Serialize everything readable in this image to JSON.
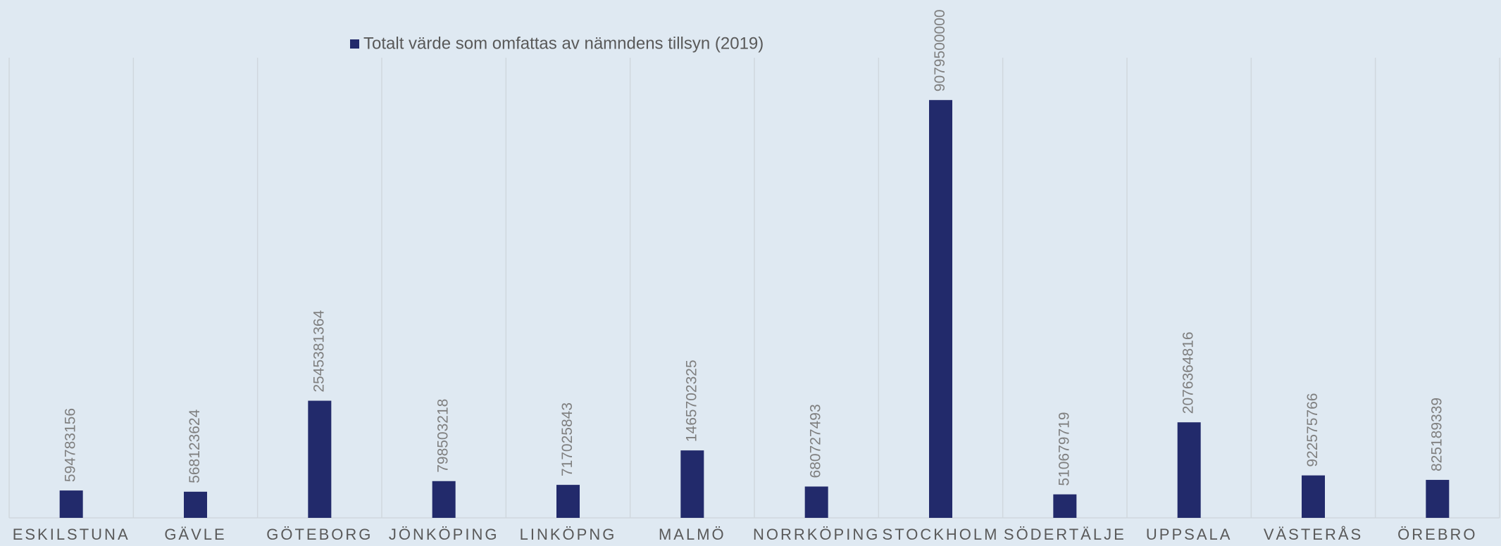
{
  "chart_data": {
    "type": "bar",
    "series": [
      {
        "name": "Totalt värde som omfattas av nämndens tillsyn (2019)",
        "color": "#222a6b",
        "values": [
          594783156,
          568123624,
          2545381364,
          798503218,
          717025843,
          1465702325,
          680727493,
          9079500000,
          510679719,
          2076364816,
          922575766,
          825189339
        ]
      }
    ],
    "categories": [
      "ESKILSTUNA",
      "GÄVLE",
      "GÖTEBORG",
      "JÖNKÖPING",
      "LINKÖPNG",
      "MALMÖ",
      "NORRKÖPING",
      "STOCKHOLM",
      "SÖDERTÄLJE",
      "UPPSALA",
      "VÄSTERÅS",
      "ÖREBRO"
    ],
    "ylim": [
      0,
      10000000000
    ]
  }
}
